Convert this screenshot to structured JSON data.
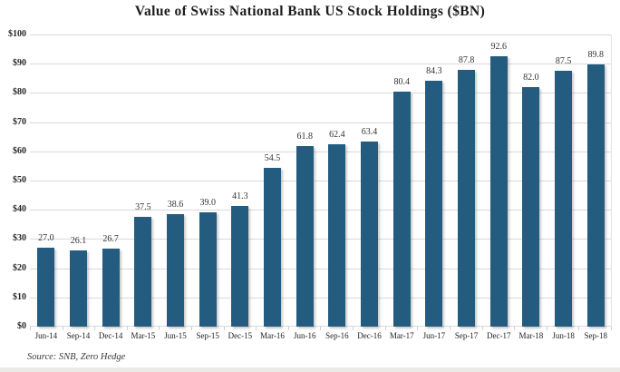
{
  "page": {
    "source_note": "Source: SNB, Zero Hedge",
    "background": "#ffffff"
  },
  "chart_data": {
    "type": "bar",
    "title": "Value of Swiss National Bank US Stock Holdings ($BN)",
    "categories": [
      "Jun-14",
      "Sep-14",
      "Dec-14",
      "Mar-15",
      "Jun-15",
      "Sep-15",
      "Dec-15",
      "Mar-16",
      "Jun-16",
      "Sep-16",
      "Dec-16",
      "Mar-17",
      "Jun-17",
      "Sep-17",
      "Dec-17",
      "Mar-18",
      "Jun-18",
      "Sep-18"
    ],
    "values": [
      27.0,
      26.1,
      26.7,
      37.5,
      38.6,
      39.0,
      41.3,
      54.5,
      61.8,
      62.4,
      63.4,
      80.4,
      84.3,
      87.8,
      92.6,
      82.0,
      87.5,
      89.8
    ],
    "xlabel": "",
    "ylabel": "",
    "ylim": [
      0,
      100
    ],
    "ytick_step": 10,
    "ytick_labels_top_to_bottom": [
      "$100",
      "$90",
      "$80",
      "$70",
      "$60",
      "$50",
      "$40",
      "$30",
      "$20",
      "$10",
      "$0"
    ],
    "grid": true,
    "legend": "none",
    "value_labels_shown": true,
    "bar_color": "#245C80",
    "gridline_color": "#d9d9d9"
  }
}
